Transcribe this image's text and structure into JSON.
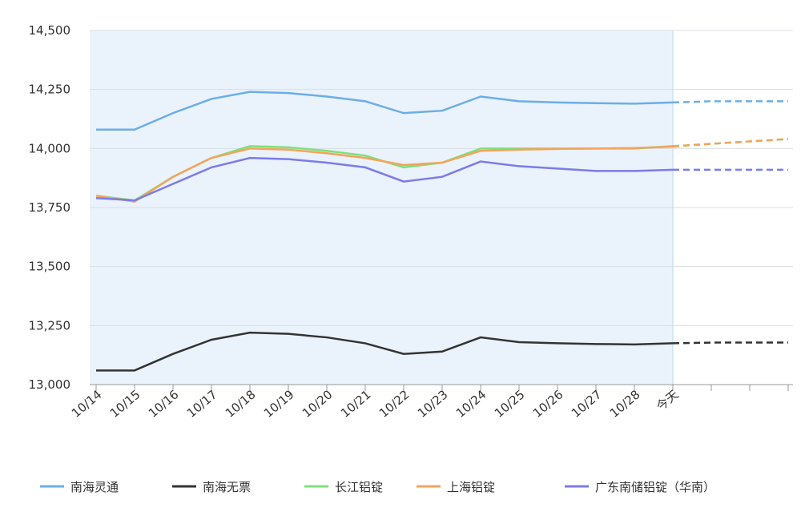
{
  "chart_data": {
    "type": "line",
    "categories": [
      "10/14",
      "10/15",
      "10/16",
      "10/17",
      "10/18",
      "10/19",
      "10/20",
      "10/21",
      "10/22",
      "10/23",
      "10/24",
      "10/25",
      "10/26",
      "10/27",
      "10/28",
      "今天",
      null,
      null,
      null
    ],
    "ylim": [
      13000,
      14500
    ],
    "yticks": [
      {
        "value": 13000,
        "label": "13,000"
      },
      {
        "value": 13250,
        "label": "13,250"
      },
      {
        "value": 13500,
        "label": "13,500"
      },
      {
        "value": 13750,
        "label": "13,750"
      },
      {
        "value": 14000,
        "label": "14,000"
      },
      {
        "value": 14250,
        "label": "14,250"
      },
      {
        "value": 14500,
        "label": "14,500"
      }
    ],
    "grid": true,
    "series": [
      {
        "name": "南海灵通",
        "color": "#6aaee8",
        "values": [
          14080,
          14080,
          14150,
          14210,
          14240,
          14235,
          14220,
          14200,
          14150,
          14160,
          14220,
          14200,
          14195,
          14192,
          14190,
          14195,
          14200,
          14200,
          14200
        ]
      },
      {
        "name": "南海无票",
        "color": "#333333",
        "values": [
          13060,
          13060,
          13130,
          13190,
          13220,
          13215,
          13200,
          13175,
          13130,
          13140,
          13200,
          13180,
          13175,
          13172,
          13170,
          13175,
          13178,
          13178,
          13178
        ]
      },
      {
        "name": "长江铝锭",
        "color": "#7fe07a",
        "values": [
          13800,
          13780,
          13880,
          13960,
          14010,
          14005,
          13990,
          13970,
          13920,
          13940,
          14000,
          14000,
          14000,
          14000,
          14000,
          14010,
          14020,
          14030,
          14040
        ]
      },
      {
        "name": "上海铝锭",
        "color": "#f4a35a",
        "values": [
          13800,
          13775,
          13880,
          13960,
          14000,
          13995,
          13980,
          13960,
          13930,
          13940,
          13990,
          13995,
          13998,
          14000,
          14002,
          14008,
          14020,
          14030,
          14040
        ]
      },
      {
        "name": "广东南储铝锭（华南）",
        "color": "#7b7bea",
        "values": [
          13790,
          13780,
          13850,
          13920,
          13960,
          13955,
          13940,
          13920,
          13860,
          13880,
          13945,
          13925,
          13915,
          13905,
          13905,
          13910,
          13910,
          13910,
          13910
        ]
      }
    ]
  }
}
